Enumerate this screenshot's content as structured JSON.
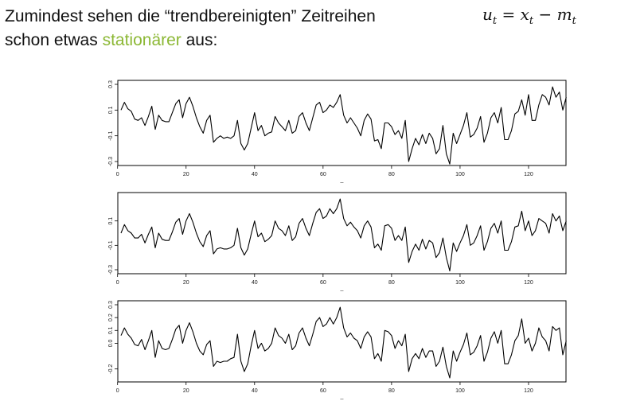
{
  "heading": {
    "line1_prefix": "Zumindest sehen die “trendbereinigten” Zeitreihen",
    "line2_prefix": "schon etwas ",
    "highlight": "stationärer",
    "line2_suffix": " aus:",
    "highlight_color": "#8cb835",
    "formula": {
      "u": "u",
      "eq": " = ",
      "x": "x",
      "minus": " − ",
      "m": "m",
      "sub": "t"
    }
  },
  "chart_data": [
    {
      "type": "line",
      "xlim": [
        1,
        130
      ],
      "ylim": [
        -0.3,
        0.3
      ],
      "xticks": [
        0,
        20,
        40,
        60,
        80,
        100,
        120
      ],
      "yticks": [
        -0.3,
        -0.1,
        0.1,
        0.3
      ],
      "ytick_labels": [
        "-0.3",
        "-0.1",
        "0.1",
        "0.3"
      ],
      "xlabel": "_",
      "values": [
        0.1,
        0.16,
        0.11,
        0.09,
        0.03,
        0.02,
        0.04,
        -0.02,
        0.05,
        0.13,
        -0.05,
        0.06,
        0.02,
        0.01,
        0.01,
        0.08,
        0.15,
        0.18,
        0.04,
        0.15,
        0.2,
        0.13,
        0.04,
        -0.03,
        -0.08,
        0.02,
        0.06,
        -0.15,
        -0.12,
        -0.1,
        -0.12,
        -0.11,
        -0.12,
        -0.1,
        0.02,
        -0.16,
        -0.21,
        -0.16,
        -0.04,
        0.08,
        -0.06,
        -0.02,
        -0.1,
        -0.08,
        -0.07,
        0.05,
        0.0,
        -0.03,
        -0.06,
        0.02,
        -0.08,
        -0.06,
        0.05,
        0.08,
        0.0,
        -0.06,
        0.04,
        0.14,
        0.16,
        0.08,
        0.1,
        0.14,
        0.12,
        0.16,
        0.22,
        0.06,
        0.0,
        0.04,
        0.0,
        -0.04,
        -0.1,
        0.02,
        0.07,
        0.03,
        -0.14,
        -0.13,
        -0.2,
        0.0,
        0.0,
        -0.03,
        -0.09,
        -0.06,
        -0.12,
        0.02,
        -0.3,
        -0.2,
        -0.12,
        -0.17,
        -0.09,
        -0.16,
        -0.08,
        -0.12,
        -0.24,
        -0.2,
        -0.02,
        -0.24,
        -0.32,
        -0.08,
        -0.16,
        -0.09,
        -0.02,
        0.08,
        -0.11,
        -0.09,
        -0.04,
        0.05,
        -0.15,
        -0.08,
        0.04,
        0.08,
        0.0,
        0.12,
        -0.13,
        -0.13,
        -0.06,
        0.07,
        0.09,
        0.18,
        0.06,
        0.22,
        0.02,
        0.02,
        0.14,
        0.22,
        0.2,
        0.14,
        0.28,
        0.2,
        0.24,
        0.1,
        0.2
      ]
    },
    {
      "type": "line",
      "xlim": [
        1,
        130
      ],
      "ylim": [
        -0.3,
        0.3
      ],
      "xticks": [
        0,
        20,
        40,
        60,
        80,
        100,
        120
      ],
      "yticks": [
        -0.3,
        -0.1,
        0.1
      ],
      "ytick_labels": [
        "-0.3",
        "-0.1",
        "0.1"
      ],
      "xlabel": "_",
      "values": [
        0.0,
        0.07,
        0.02,
        0.0,
        -0.04,
        -0.04,
        -0.01,
        -0.08,
        -0.01,
        0.05,
        -0.12,
        0.0,
        -0.05,
        -0.06,
        -0.06,
        0.01,
        0.09,
        0.12,
        -0.01,
        0.1,
        0.16,
        0.09,
        0.0,
        -0.07,
        -0.11,
        -0.02,
        0.02,
        -0.17,
        -0.13,
        -0.12,
        -0.13,
        -0.13,
        -0.12,
        -0.1,
        0.04,
        -0.12,
        -0.18,
        -0.13,
        -0.01,
        0.1,
        -0.03,
        0.0,
        -0.07,
        -0.05,
        -0.02,
        0.1,
        0.04,
        0.02,
        -0.02,
        0.06,
        -0.06,
        -0.03,
        0.08,
        0.12,
        0.04,
        -0.02,
        0.08,
        0.17,
        0.2,
        0.12,
        0.14,
        0.2,
        0.16,
        0.2,
        0.28,
        0.12,
        0.06,
        0.09,
        0.05,
        0.02,
        -0.04,
        0.06,
        0.1,
        0.05,
        -0.12,
        -0.09,
        -0.14,
        0.06,
        0.07,
        0.04,
        -0.06,
        -0.02,
        -0.06,
        0.05,
        -0.24,
        -0.15,
        -0.09,
        -0.14,
        -0.05,
        -0.13,
        -0.06,
        -0.08,
        -0.2,
        -0.16,
        -0.04,
        -0.2,
        -0.31,
        -0.08,
        -0.15,
        -0.08,
        -0.02,
        0.07,
        -0.1,
        -0.08,
        -0.02,
        0.06,
        -0.14,
        -0.07,
        0.04,
        0.08,
        0.0,
        0.1,
        -0.14,
        -0.14,
        -0.07,
        0.05,
        0.06,
        0.18,
        0.02,
        0.1,
        -0.02,
        0.02,
        0.12,
        0.1,
        0.08,
        0.0,
        0.16,
        0.1,
        0.14,
        0.02,
        0.1
      ]
    },
    {
      "type": "line",
      "xlim": [
        1,
        130
      ],
      "ylim": [
        -0.27,
        0.3
      ],
      "xticks": [
        0,
        20,
        40,
        60,
        80,
        100,
        120
      ],
      "yticks": [
        -0.2,
        0.0,
        0.1,
        0.2,
        0.3
      ],
      "ytick_labels": [
        "-0.2",
        "0.0",
        "0.1",
        "0.2",
        "0.3"
      ],
      "xlabel": "_",
      "values": [
        0.06,
        0.12,
        0.07,
        0.04,
        -0.01,
        -0.02,
        0.03,
        -0.05,
        0.02,
        0.1,
        -0.11,
        0.02,
        -0.04,
        -0.05,
        -0.04,
        0.03,
        0.11,
        0.14,
        0.0,
        0.1,
        0.16,
        0.09,
        0.0,
        -0.06,
        -0.09,
        -0.01,
        0.02,
        -0.18,
        -0.14,
        -0.15,
        -0.14,
        -0.14,
        -0.12,
        -0.11,
        0.07,
        -0.14,
        -0.22,
        -0.16,
        -0.02,
        0.1,
        -0.04,
        0.0,
        -0.06,
        -0.04,
        0.0,
        0.12,
        0.06,
        0.04,
        0.0,
        0.07,
        -0.05,
        -0.02,
        0.08,
        0.12,
        0.04,
        -0.02,
        0.07,
        0.17,
        0.2,
        0.13,
        0.15,
        0.2,
        0.15,
        0.2,
        0.28,
        0.12,
        0.05,
        0.08,
        0.04,
        0.02,
        -0.04,
        0.05,
        0.09,
        0.05,
        -0.12,
        -0.08,
        -0.14,
        0.1,
        0.09,
        0.06,
        -0.04,
        0.02,
        -0.02,
        0.07,
        -0.22,
        -0.12,
        -0.08,
        -0.12,
        -0.04,
        -0.11,
        -0.06,
        -0.06,
        -0.18,
        -0.14,
        -0.03,
        -0.18,
        -0.27,
        -0.06,
        -0.14,
        -0.07,
        -0.01,
        0.08,
        -0.09,
        -0.07,
        -0.02,
        0.06,
        -0.14,
        -0.07,
        0.04,
        0.09,
        0.0,
        0.1,
        -0.16,
        -0.16,
        -0.09,
        0.02,
        0.06,
        0.19,
        0.0,
        0.04,
        -0.06,
        0.0,
        0.12,
        0.05,
        0.02,
        -0.06,
        0.13,
        0.1,
        0.12,
        -0.09,
        0.02
      ]
    }
  ]
}
